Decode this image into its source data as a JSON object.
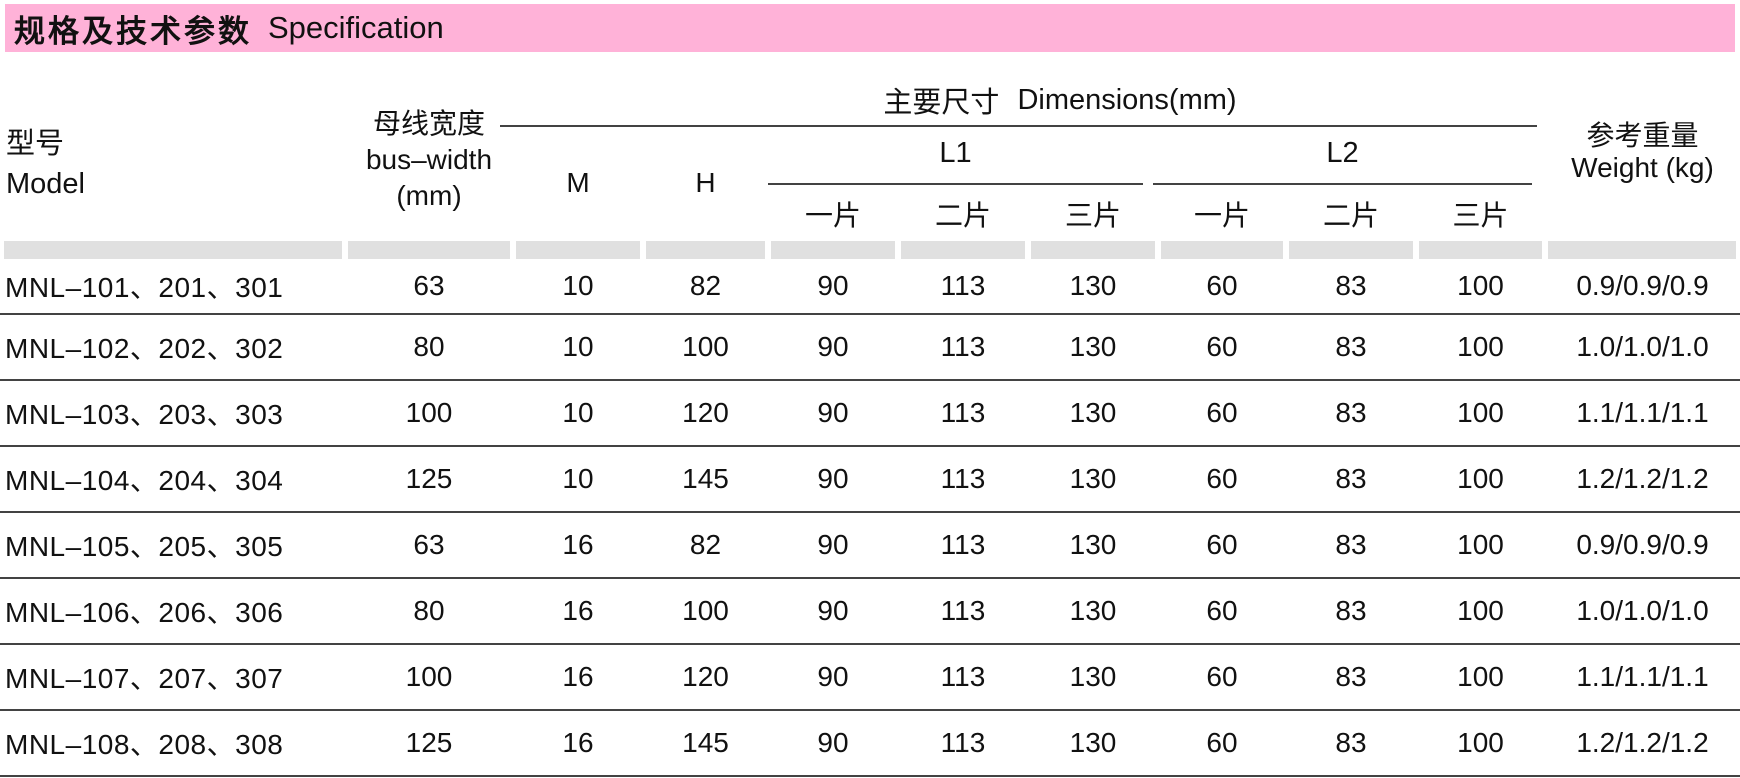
{
  "title": {
    "zh": "规格及技术参数",
    "en": "Specification"
  },
  "header": {
    "model_zh": "型号",
    "model_en": "Model",
    "bus_width_lines": [
      "母线宽度",
      "bus–width",
      "(mm)"
    ],
    "m": "M",
    "h": "H",
    "dimensions_zh": "主要尺寸",
    "dimensions_en": "Dimensions(mm)",
    "l1": "L1",
    "l2": "L2",
    "piece1": "一片",
    "piece2": "二片",
    "piece3": "三片",
    "weight_zh": "参考重量",
    "weight_en": "Weight (kg)"
  },
  "rows": [
    {
      "model": "MNL–101、201、301",
      "bus_width": "63",
      "m": "10",
      "h": "82",
      "l1": [
        "90",
        "113",
        "130"
      ],
      "l2": [
        "60",
        "83",
        "100"
      ],
      "weight": "0.9/0.9/0.9"
    },
    {
      "model": "MNL–102、202、302",
      "bus_width": "80",
      "m": "10",
      "h": "100",
      "l1": [
        "90",
        "113",
        "130"
      ],
      "l2": [
        "60",
        "83",
        "100"
      ],
      "weight": "1.0/1.0/1.0"
    },
    {
      "model": "MNL–103、203、303",
      "bus_width": "100",
      "m": "10",
      "h": "120",
      "l1": [
        "90",
        "113",
        "130"
      ],
      "l2": [
        "60",
        "83",
        "100"
      ],
      "weight": "1.1/1.1/1.1"
    },
    {
      "model": "MNL–104、204、304",
      "bus_width": "125",
      "m": "10",
      "h": "145",
      "l1": [
        "90",
        "113",
        "130"
      ],
      "l2": [
        "60",
        "83",
        "100"
      ],
      "weight": "1.2/1.2/1.2"
    },
    {
      "model": "MNL–105、205、305",
      "bus_width": "63",
      "m": "16",
      "h": "82",
      "l1": [
        "90",
        "113",
        "130"
      ],
      "l2": [
        "60",
        "83",
        "100"
      ],
      "weight": "0.9/0.9/0.9"
    },
    {
      "model": "MNL–106、206、306",
      "bus_width": "80",
      "m": "16",
      "h": "100",
      "l1": [
        "90",
        "113",
        "130"
      ],
      "l2": [
        "60",
        "83",
        "100"
      ],
      "weight": "1.0/1.0/1.0"
    },
    {
      "model": "MNL–107、207、307",
      "bus_width": "100",
      "m": "16",
      "h": "120",
      "l1": [
        "90",
        "113",
        "130"
      ],
      "l2": [
        "60",
        "83",
        "100"
      ],
      "weight": "1.1/1.1/1.1"
    },
    {
      "model": "MNL–108、208、308",
      "bus_width": "125",
      "m": "16",
      "h": "145",
      "l1": [
        "90",
        "113",
        "130"
      ],
      "l2": [
        "60",
        "83",
        "100"
      ],
      "weight": "1.2/1.2/1.2"
    }
  ],
  "colors": {
    "title_bar_pink": "#ffb2d8",
    "separator_band_gray": "#e0e0e0",
    "row_line": "#434343",
    "text": "#111111"
  }
}
